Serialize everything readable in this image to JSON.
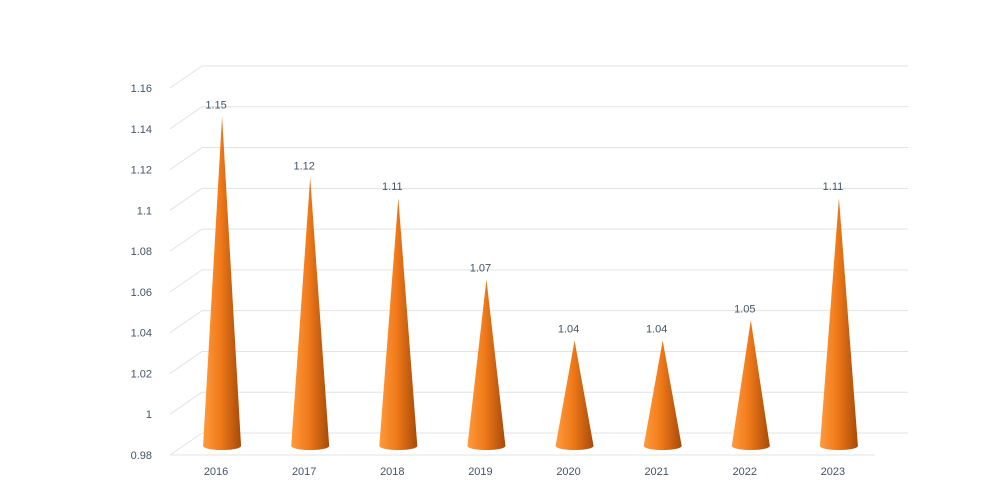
{
  "chart_data": {
    "type": "bar",
    "bar_shape": "cone",
    "categories": [
      "2016",
      "2017",
      "2018",
      "2019",
      "2020",
      "2021",
      "2022",
      "2023"
    ],
    "values": [
      1.15,
      1.12,
      1.11,
      1.07,
      1.04,
      1.04,
      1.05,
      1.11
    ],
    "value_labels": [
      "1.15",
      "1.12",
      "1.11",
      "1.07",
      "1.04",
      "1.04",
      "1.05",
      "1.11"
    ],
    "ylim": [
      0.98,
      1.16
    ],
    "yticks": [
      0.98,
      1,
      1.02,
      1.04,
      1.06,
      1.08,
      1.1,
      1.12,
      1.14,
      1.16
    ],
    "ytick_labels": [
      "0.98",
      "1",
      "1.02",
      "1.04",
      "1.06",
      "1.08",
      "1.1",
      "1.12",
      "1.14",
      "1.16"
    ],
    "title": "",
    "xlabel": "",
    "ylabel": "",
    "grid": true,
    "legend": "none",
    "colors": {
      "bar_light": "#ff9a3c",
      "bar_mid": "#f07a1a",
      "bar_dark": "#a84a08",
      "grid": "#e3e3e3",
      "axis_text": "#44546a"
    }
  }
}
